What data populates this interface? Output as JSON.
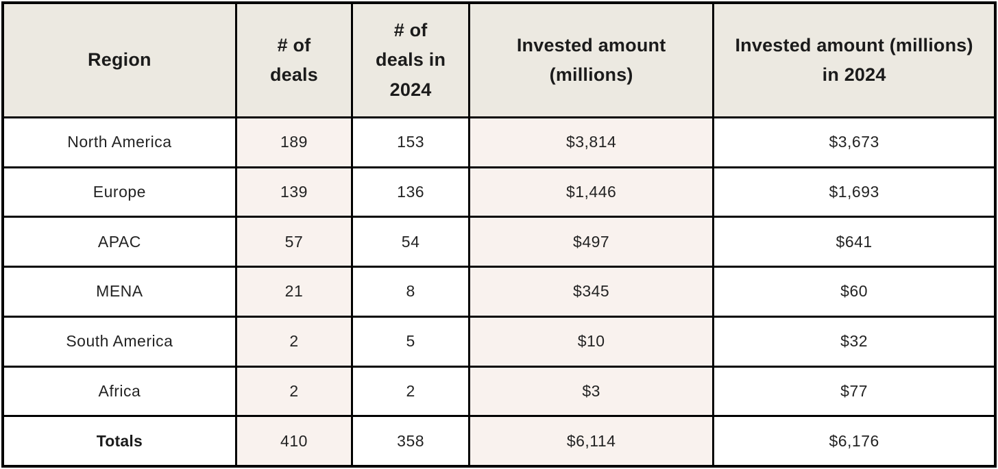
{
  "colors": {
    "header_bg": "#ece9e1",
    "stripe_bg": "#f9f2ee",
    "cell_bg": "#ffffff",
    "border": "#000000",
    "text": "#1b1b1b"
  },
  "chart_data": {
    "type": "table",
    "columns": [
      "Region",
      "# of deals",
      "# of deals in 2024",
      "Invested amount (millions)",
      "Invested amount (millions) in 2024"
    ],
    "rows": [
      [
        "North America",
        "189",
        "153",
        "$3,814",
        "$3,673"
      ],
      [
        "Europe",
        "139",
        "136",
        "$1,446",
        "$1,693"
      ],
      [
        "APAC",
        "57",
        "54",
        "$497",
        "$641"
      ],
      [
        "MENA",
        "21",
        "8",
        "$345",
        "$60"
      ],
      [
        "South America",
        "2",
        "5",
        "$10",
        "$32"
      ],
      [
        "Africa",
        "2",
        "2",
        "$3",
        "$77"
      ],
      [
        "Totals",
        "410",
        "358",
        "$6,114",
        "$6,176"
      ]
    ]
  }
}
